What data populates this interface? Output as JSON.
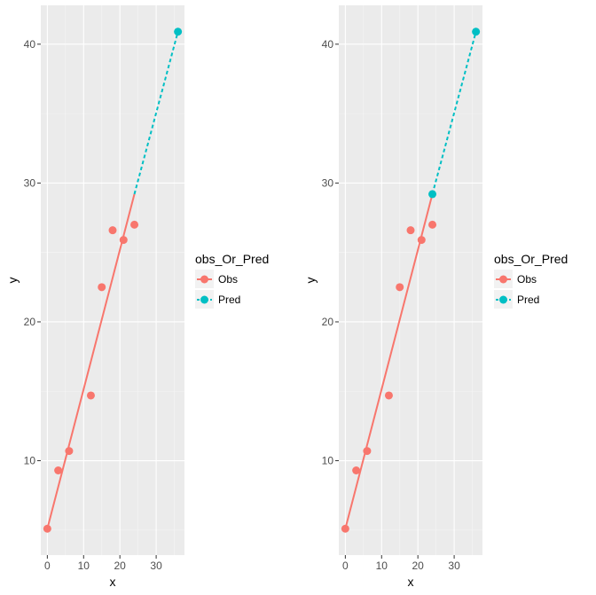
{
  "colors": {
    "panel_bg": "#ebebeb",
    "grid_major": "#ffffff",
    "grid_minor": "#f5f5f5",
    "obs": "#f8766d",
    "pred": "#00bfc4",
    "tick_text": "#4d4d4d"
  },
  "chart_data": [
    {
      "type": "scatter",
      "title": "",
      "xlabel": "x",
      "ylabel": "y",
      "xlim": [
        -1.8,
        37.8
      ],
      "ylim": [
        3.2,
        42.8
      ],
      "xticks": [
        0,
        10,
        20,
        30
      ],
      "yticks": [
        10,
        20,
        30,
        40
      ],
      "grid": true,
      "legend_position": "right",
      "legend": {
        "title": "obs_Or_Pred",
        "entries": [
          {
            "label": "Obs",
            "series": "Obs"
          },
          {
            "label": "Pred",
            "series": "Pred"
          }
        ]
      },
      "series": [
        {
          "name": "Obs",
          "line_style": "solid",
          "points": [
            [
              0,
              5.1
            ],
            [
              3,
              9.3
            ],
            [
              6,
              10.7
            ],
            [
              12,
              14.7
            ],
            [
              15,
              22.5
            ],
            [
              18,
              26.6
            ],
            [
              21,
              25.9
            ],
            [
              24,
              27.0
            ]
          ],
          "line": [
            [
              0,
              5.1
            ],
            [
              24,
              29.2
            ]
          ]
        },
        {
          "name": "Pred",
          "line_style": "dashed",
          "points": [
            [
              36,
              40.9
            ]
          ],
          "line": [
            [
              24,
              29.2
            ],
            [
              36,
              40.9
            ]
          ]
        }
      ]
    },
    {
      "type": "scatter",
      "title": "",
      "xlabel": "x",
      "ylabel": "y",
      "xlim": [
        -1.8,
        37.8
      ],
      "ylim": [
        3.2,
        42.8
      ],
      "xticks": [
        0,
        10,
        20,
        30
      ],
      "yticks": [
        10,
        20,
        30,
        40
      ],
      "grid": true,
      "legend_position": "right",
      "legend": {
        "title": "obs_Or_Pred",
        "entries": [
          {
            "label": "Obs",
            "series": "Obs"
          },
          {
            "label": "Pred",
            "series": "Pred"
          }
        ]
      },
      "series": [
        {
          "name": "Obs",
          "line_style": "solid",
          "points": [
            [
              0,
              5.1
            ],
            [
              3,
              9.3
            ],
            [
              6,
              10.7
            ],
            [
              12,
              14.7
            ],
            [
              15,
              22.5
            ],
            [
              18,
              26.6
            ],
            [
              21,
              25.9
            ],
            [
              24,
              27.0
            ]
          ],
          "line": [
            [
              0,
              5.1
            ],
            [
              24,
              29.2
            ]
          ]
        },
        {
          "name": "Pred",
          "line_style": "dashed",
          "points": [
            [
              24,
              29.2
            ],
            [
              36,
              40.9
            ]
          ],
          "line": [
            [
              24,
              29.2
            ],
            [
              36,
              40.9
            ]
          ]
        }
      ]
    }
  ]
}
